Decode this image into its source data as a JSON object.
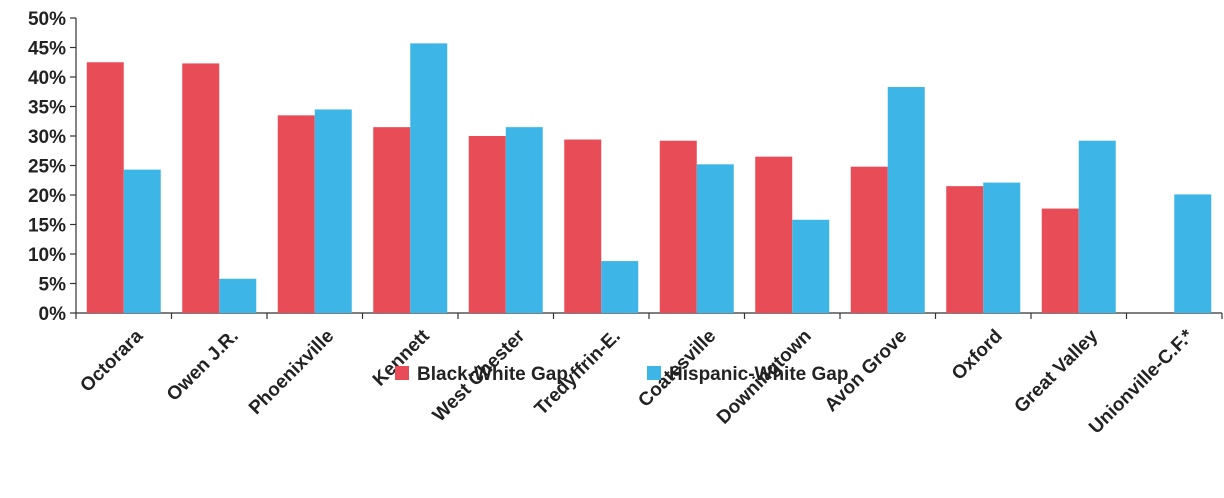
{
  "chart_data": {
    "type": "bar",
    "categories": [
      "Octorara",
      "Owen J.R.",
      "Phoenixville",
      "Kennett",
      "West Chester",
      "Tredyffrin-E.",
      "Coatesville",
      "Downingtown",
      "Avon Grove",
      "Oxford",
      "Great Valley",
      "Unionville-C.F.*"
    ],
    "series": [
      {
        "name": "Black-White Gap",
        "color": "#e84c57",
        "values": [
          42.5,
          42.3,
          33.5,
          31.5,
          30.0,
          29.4,
          29.2,
          26.5,
          24.8,
          21.5,
          17.7,
          null
        ]
      },
      {
        "name": "Hispanic-White Gap",
        "color": "#3db5e6",
        "values": [
          24.3,
          5.8,
          34.5,
          45.7,
          31.5,
          8.8,
          25.2,
          15.8,
          38.3,
          22.1,
          29.2,
          20.1
        ]
      }
    ],
    "ylim": [
      0,
      50
    ],
    "yticks": [
      "0%",
      "5%",
      "10%",
      "15%",
      "20%",
      "25%",
      "30%",
      "35%",
      "40%",
      "45%",
      "50%"
    ],
    "grid": false,
    "legend_position": "bottom-center"
  }
}
